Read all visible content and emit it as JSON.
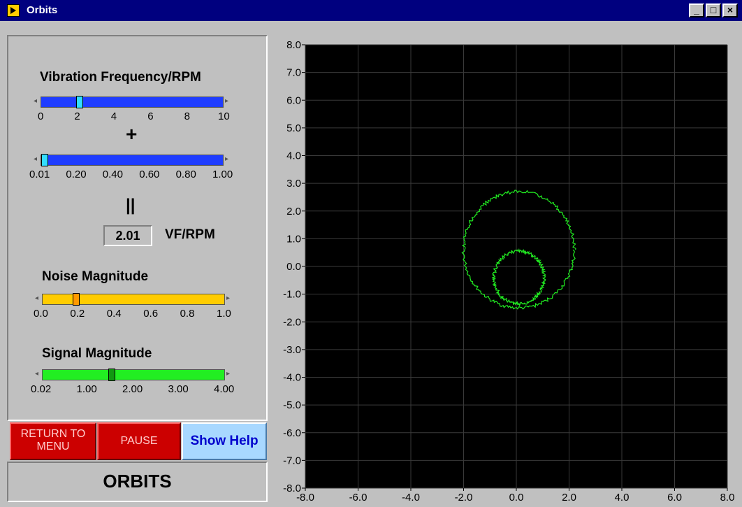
{
  "window": {
    "title": "Orbits",
    "minimize": "_",
    "maximize": "□",
    "close": "×"
  },
  "controls": {
    "vf_label": "Vibration Frequency/RPM",
    "vf_coarse": {
      "ticks": [
        "0",
        "2",
        "4",
        "6",
        "8",
        "10"
      ],
      "value": 2,
      "min": 0,
      "max": 10,
      "color": "#1f3dff"
    },
    "plus": "+",
    "vf_fine": {
      "ticks": [
        "0.01",
        "0.20",
        "0.40",
        "0.60",
        "0.80",
        "1.00"
      ],
      "value": 0.01,
      "min": 0.01,
      "max": 1.0,
      "color": "#1f3dff"
    },
    "equals": "||",
    "result_value": "2.01",
    "result_unit": "VF/RPM",
    "noise_label": "Noise Magnitude",
    "noise": {
      "ticks": [
        "0.0",
        "0.2",
        "0.4",
        "0.6",
        "0.8",
        "1.0"
      ],
      "value": 0.17,
      "min": 0,
      "max": 1,
      "color": "#ffcc00"
    },
    "signal_label": "Signal Magnitude",
    "signal": {
      "ticks": [
        "0.02",
        "1.00",
        "2.00",
        "3.00",
        "4.00"
      ],
      "value": 1.5,
      "min": 0.02,
      "max": 4.0,
      "color": "#22ee22"
    }
  },
  "buttons": {
    "return_label": "RETURN TO MENU",
    "pause_label": "PAUSE",
    "help_label": "Show Help"
  },
  "status": {
    "text": "ORBITS"
  },
  "chart_data": {
    "type": "line",
    "xlim": [
      -8,
      8
    ],
    "ylim": [
      -8,
      8
    ],
    "x_ticks": [
      "-8.0",
      "-6.0",
      "-4.0",
      "-2.0",
      "0.0",
      "2.0",
      "4.0",
      "6.0",
      "8.0"
    ],
    "y_ticks": [
      "8.0",
      "7.0",
      "6.0",
      "5.0",
      "4.0",
      "3.0",
      "2.0",
      "1.0",
      "0.0",
      "-1.0",
      "-2.0",
      "-3.0",
      "-4.0",
      "-5.0",
      "-6.0",
      "-7.0",
      "-8.0"
    ],
    "grid": true,
    "background": "#000000",
    "line_color": "#22ee22",
    "series": [
      {
        "outer_orbit": {
          "center": [
            0.1,
            0.6
          ],
          "radius": 2.1
        }
      },
      {
        "inner_orbit": {
          "center": [
            0.1,
            -0.4
          ],
          "radius": 0.95
        }
      }
    ]
  }
}
